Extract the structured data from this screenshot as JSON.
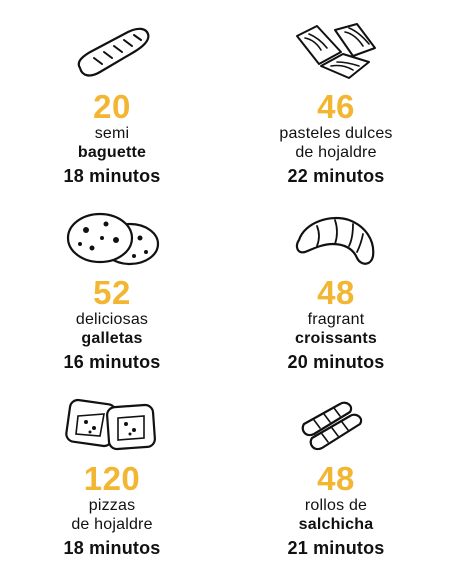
{
  "accent_color": "#f2b632",
  "items": [
    {
      "icon": "baguette-icon",
      "count": "20",
      "line1": "semi",
      "line2": "baguette",
      "line2_bold": true,
      "time": "18 minutos"
    },
    {
      "icon": "pastry-icon",
      "count": "46",
      "line1": "pasteles dulces",
      "line2": "de hojaldre",
      "line2_bold": false,
      "time": "22 minutos"
    },
    {
      "icon": "cookies-icon",
      "count": "52",
      "line1": "deliciosas",
      "line2": "galletas",
      "line2_bold": true,
      "time": "16 minutos"
    },
    {
      "icon": "croissant-icon",
      "count": "48",
      "line1": "fragrant",
      "line2": "croissants",
      "line2_bold": true,
      "time": "20 minutos"
    },
    {
      "icon": "pizza-icon",
      "count": "120",
      "line1": "pizzas",
      "line2": "de hojaldre",
      "line2_bold": false,
      "time": "18 minutos"
    },
    {
      "icon": "sausage-roll-icon",
      "count": "48",
      "line1": "rollos de",
      "line2": "salchicha",
      "line2_bold": true,
      "time": "21 minutos"
    }
  ]
}
